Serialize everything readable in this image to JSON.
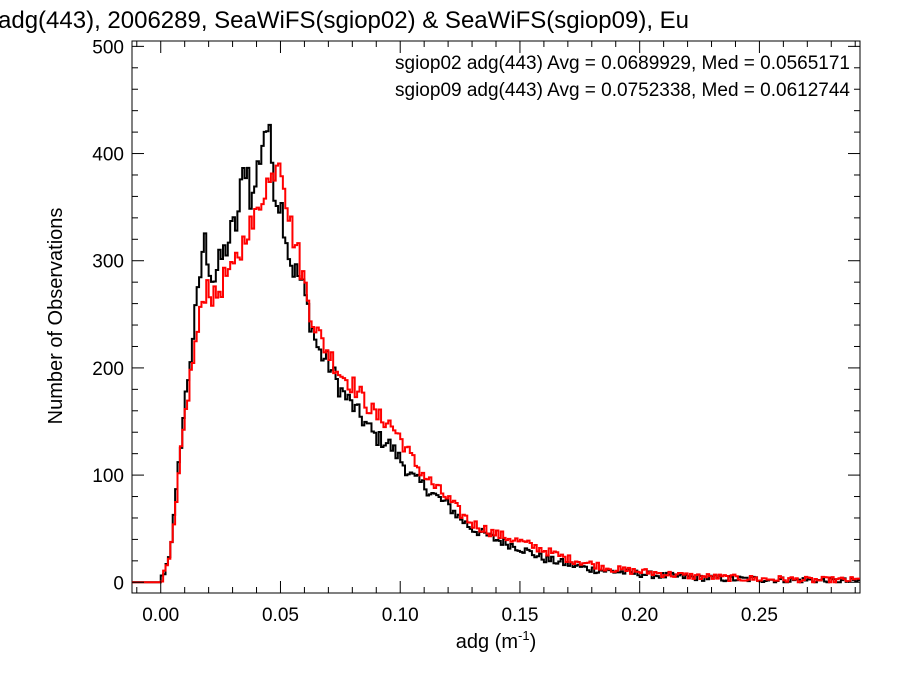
{
  "chart_data": {
    "type": "line",
    "style": "step-histogram",
    "title": "adg(443), 2006289, SeaWiFS(sgiop02) & SeaWiFS(sgiop09), Eu",
    "xlabel": "adg (m",
    "xlabel_sup": "-1",
    "xlabel_close": ")",
    "ylabel": "Number of Observations",
    "xlim": [
      -0.012,
      0.292
    ],
    "ylim": [
      -10,
      505
    ],
    "xticks": [
      0.0,
      0.05,
      0.1,
      0.15,
      0.2,
      0.25
    ],
    "xtick_labels": [
      "0.00",
      "0.05",
      "0.10",
      "0.15",
      "0.20",
      "0.25"
    ],
    "yticks": [
      0,
      100,
      200,
      300,
      400,
      500
    ],
    "ytick_labels": [
      "0",
      "100",
      "200",
      "300",
      "400",
      "500"
    ],
    "grid": false,
    "legend": "top-right",
    "annotations": [
      {
        "text": "sgiop02 adg(443) Avg = 0.0689929, Med = 0.0565171",
        "color": "#000000"
      },
      {
        "text": "sgiop09 adg(443) Avg = 0.0752338, Med = 0.0612744",
        "color": "#ff0000"
      }
    ],
    "series": [
      {
        "color": "#000000",
        "x": [
          -0.012,
          0.0,
          0.002,
          0.004,
          0.006,
          0.008,
          0.01,
          0.012,
          0.014,
          0.016,
          0.018,
          0.02,
          0.022,
          0.024,
          0.026,
          0.028,
          0.03,
          0.032,
          0.034,
          0.036,
          0.038,
          0.04,
          0.042,
          0.044,
          0.046,
          0.048,
          0.05,
          0.052,
          0.054,
          0.056,
          0.058,
          0.06,
          0.063,
          0.066,
          0.07,
          0.075,
          0.08,
          0.085,
          0.09,
          0.095,
          0.1,
          0.105,
          0.11,
          0.115,
          0.12,
          0.125,
          0.13,
          0.14,
          0.15,
          0.16,
          0.17,
          0.18,
          0.19,
          0.2,
          0.21,
          0.22,
          0.23,
          0.24,
          0.25,
          0.26,
          0.27,
          0.28,
          0.292
        ],
        "y": [
          0,
          2,
          12,
          30,
          70,
          120,
          165,
          200,
          240,
          275,
          322,
          300,
          280,
          295,
          305,
          315,
          330,
          335,
          375,
          395,
          350,
          380,
          405,
          430,
          405,
          360,
          355,
          330,
          300,
          290,
          285,
          270,
          240,
          215,
          205,
          180,
          165,
          150,
          135,
          130,
          115,
          98,
          90,
          80,
          72,
          60,
          50,
          40,
          32,
          22,
          17,
          12,
          10,
          8,
          6,
          5,
          4,
          3,
          3,
          2,
          2,
          1,
          1
        ]
      },
      {
        "color": "#ff0000",
        "x": [
          -0.012,
          0.0,
          0.002,
          0.004,
          0.006,
          0.008,
          0.01,
          0.012,
          0.014,
          0.016,
          0.018,
          0.02,
          0.022,
          0.024,
          0.026,
          0.028,
          0.03,
          0.032,
          0.034,
          0.036,
          0.038,
          0.04,
          0.042,
          0.044,
          0.046,
          0.048,
          0.05,
          0.052,
          0.054,
          0.056,
          0.058,
          0.06,
          0.063,
          0.066,
          0.07,
          0.075,
          0.08,
          0.085,
          0.09,
          0.095,
          0.1,
          0.105,
          0.11,
          0.115,
          0.12,
          0.125,
          0.13,
          0.14,
          0.15,
          0.16,
          0.17,
          0.18,
          0.19,
          0.2,
          0.21,
          0.22,
          0.23,
          0.24,
          0.25,
          0.26,
          0.27,
          0.28,
          0.292
        ],
        "y": [
          0,
          1,
          10,
          25,
          60,
          110,
          150,
          185,
          215,
          240,
          270,
          280,
          262,
          270,
          280,
          290,
          285,
          305,
          310,
          335,
          330,
          340,
          360,
          375,
          370,
          395,
          400,
          370,
          335,
          320,
          300,
          280,
          250,
          230,
          215,
          195,
          185,
          170,
          155,
          150,
          135,
          115,
          100,
          88,
          78,
          65,
          55,
          45,
          38,
          30,
          22,
          17,
          12,
          10,
          8,
          6,
          5,
          4,
          3,
          3,
          2,
          2,
          2
        ]
      }
    ]
  }
}
